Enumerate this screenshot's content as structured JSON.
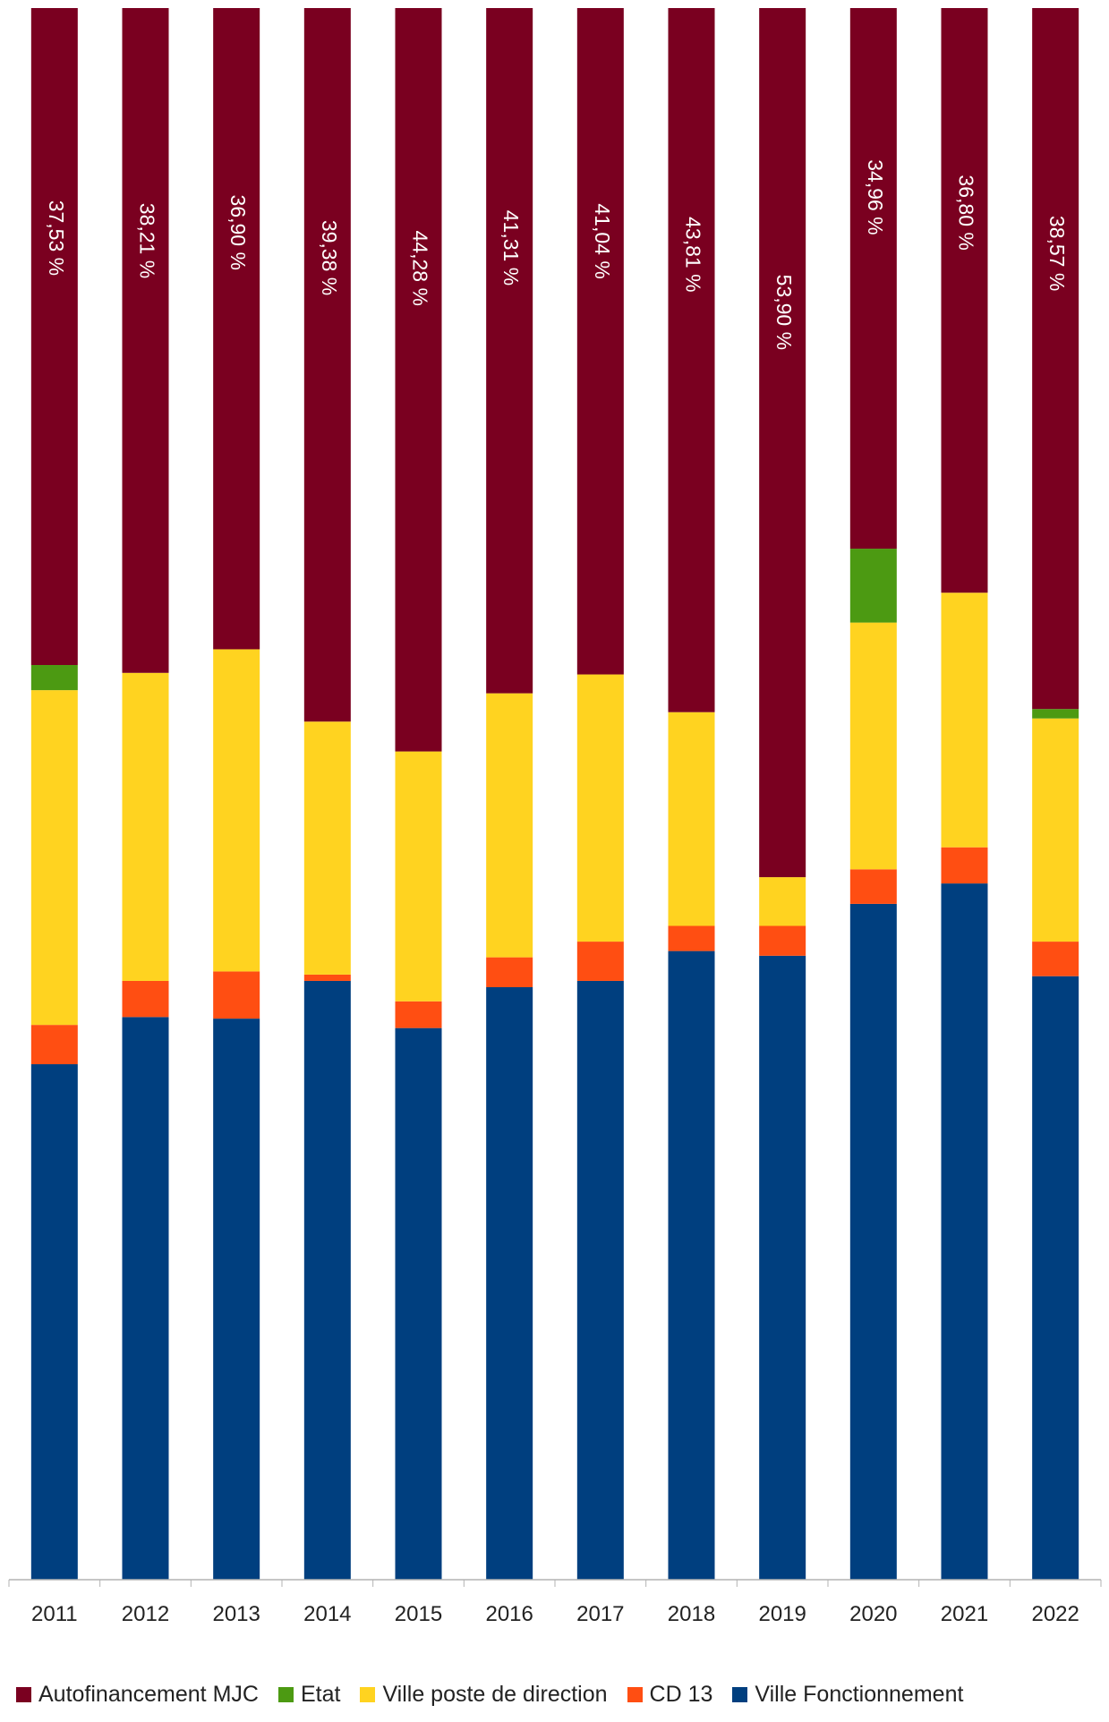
{
  "chart_data": {
    "type": "bar",
    "stacked": true,
    "percent_stacked": true,
    "title": "",
    "xlabel": "",
    "ylabel": "",
    "ylim": [
      0,
      100
    ],
    "grid": false,
    "legend_position": "bottom",
    "categories": [
      "2011",
      "2012",
      "2013",
      "2014",
      "2015",
      "2016",
      "2017",
      "2018",
      "2019",
      "2020",
      "2021",
      "2022"
    ],
    "series": [
      {
        "name": "Ville Fonctionnement",
        "color": "#003f7f",
        "values": [
          32.8,
          35.8,
          35.7,
          38.1,
          35.1,
          37.7,
          38.1,
          40.0,
          39.7,
          43.0,
          44.3,
          38.4
        ]
      },
      {
        "name": "CD 13",
        "color": "#ff4e12",
        "values": [
          2.5,
          2.3,
          3.0,
          0.4,
          1.7,
          1.9,
          2.5,
          1.6,
          1.9,
          2.2,
          2.3,
          2.2
        ]
      },
      {
        "name": "Ville poste de direction",
        "color": "#ffd320",
        "values": [
          21.3,
          19.6,
          20.5,
          16.1,
          15.9,
          16.8,
          17.0,
          13.6,
          3.1,
          15.7,
          16.2,
          14.2
        ]
      },
      {
        "name": "Etat",
        "color": "#4c9a12",
        "values": [
          1.6,
          0,
          0,
          0,
          0,
          0,
          0,
          0,
          0,
          4.7,
          0,
          0.6
        ]
      },
      {
        "name": "Autofinancement MJC",
        "color": "#7a0020",
        "values": [
          41.8,
          42.3,
          40.8,
          45.4,
          47.3,
          43.6,
          42.4,
          44.8,
          55.3,
          34.4,
          37.2,
          44.6
        ]
      }
    ],
    "data_labels": [
      "37,53 %",
      "38,21 %",
      "36,90 %",
      "39,38 %",
      "44,28 %",
      "41,31 %",
      "41,04 %",
      "43,81 %",
      "53,90 %",
      "34,96 %",
      "36,80 %",
      "38,57 %"
    ],
    "legend": [
      "Autofinancement MJC",
      "Etat",
      "Ville poste de direction",
      "CD 13",
      "Ville Fonctionnement"
    ]
  }
}
